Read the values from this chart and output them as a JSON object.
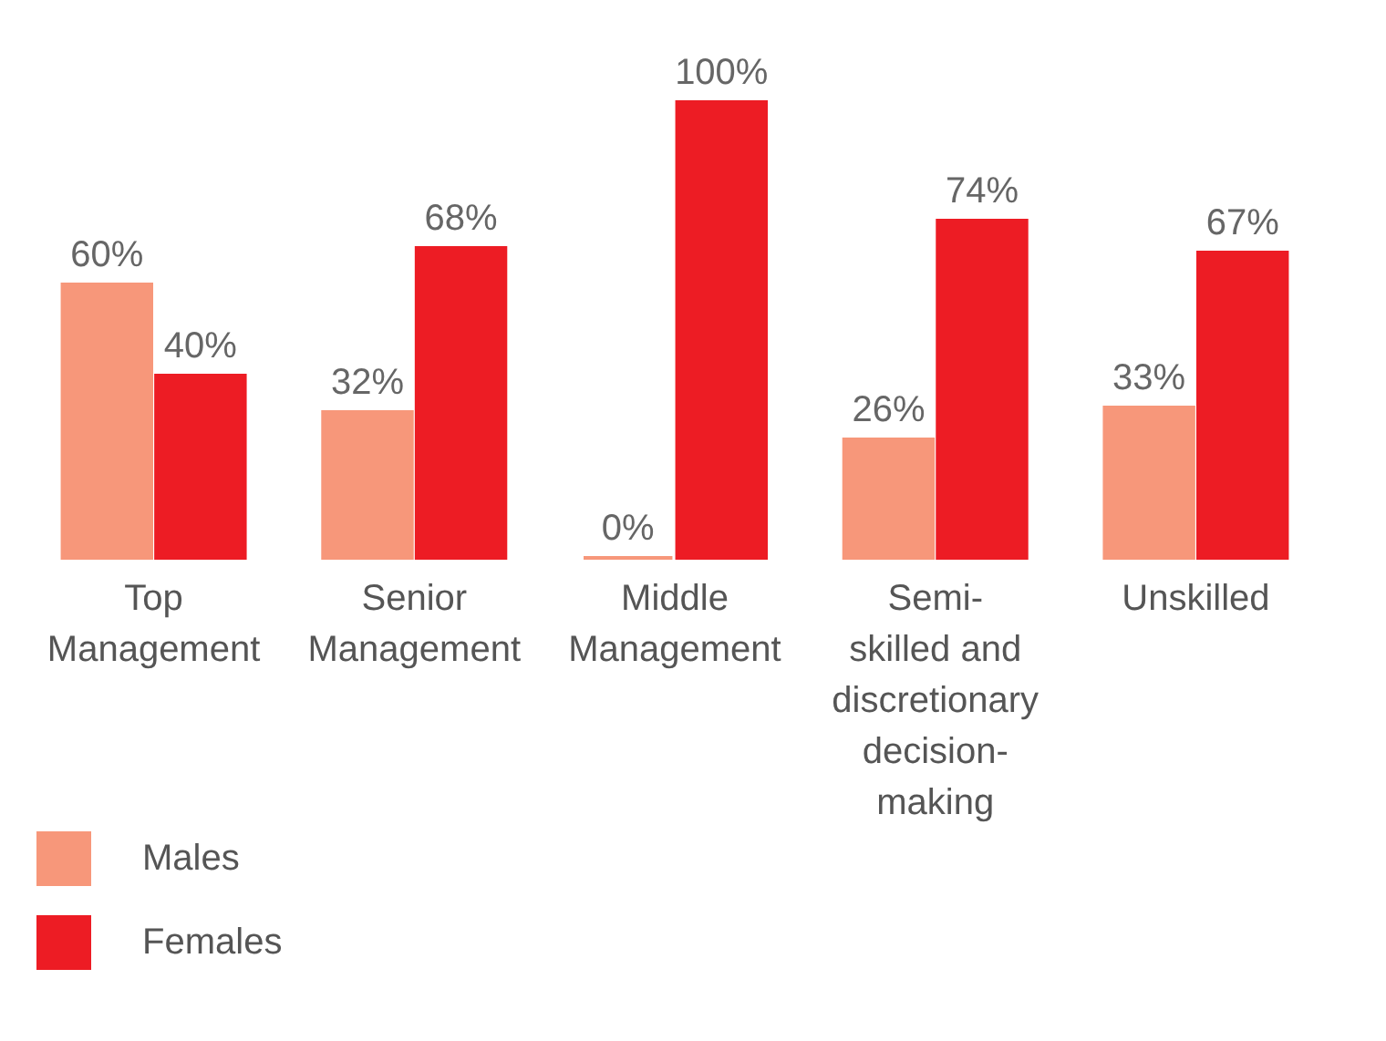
{
  "chart_data": {
    "type": "bar",
    "categories": [
      "Top Management",
      "Senior Management",
      "Middle Management",
      "Semi-skilled and discretionary decision-making",
      "Unskilled"
    ],
    "series": [
      {
        "name": "Males",
        "color": "#f7977a",
        "values": [
          60,
          32,
          0,
          26,
          33
        ],
        "value_labels": [
          "60%",
          "32%",
          "0%",
          "26%",
          "33%"
        ]
      },
      {
        "name": "Females",
        "color": "#ed1c24",
        "values": [
          40,
          68,
          100,
          74,
          67
        ],
        "value_labels": [
          "40%",
          "68%",
          "100%",
          "74%",
          "67%"
        ]
      }
    ],
    "legend": "bottom left",
    "grid": false
  }
}
